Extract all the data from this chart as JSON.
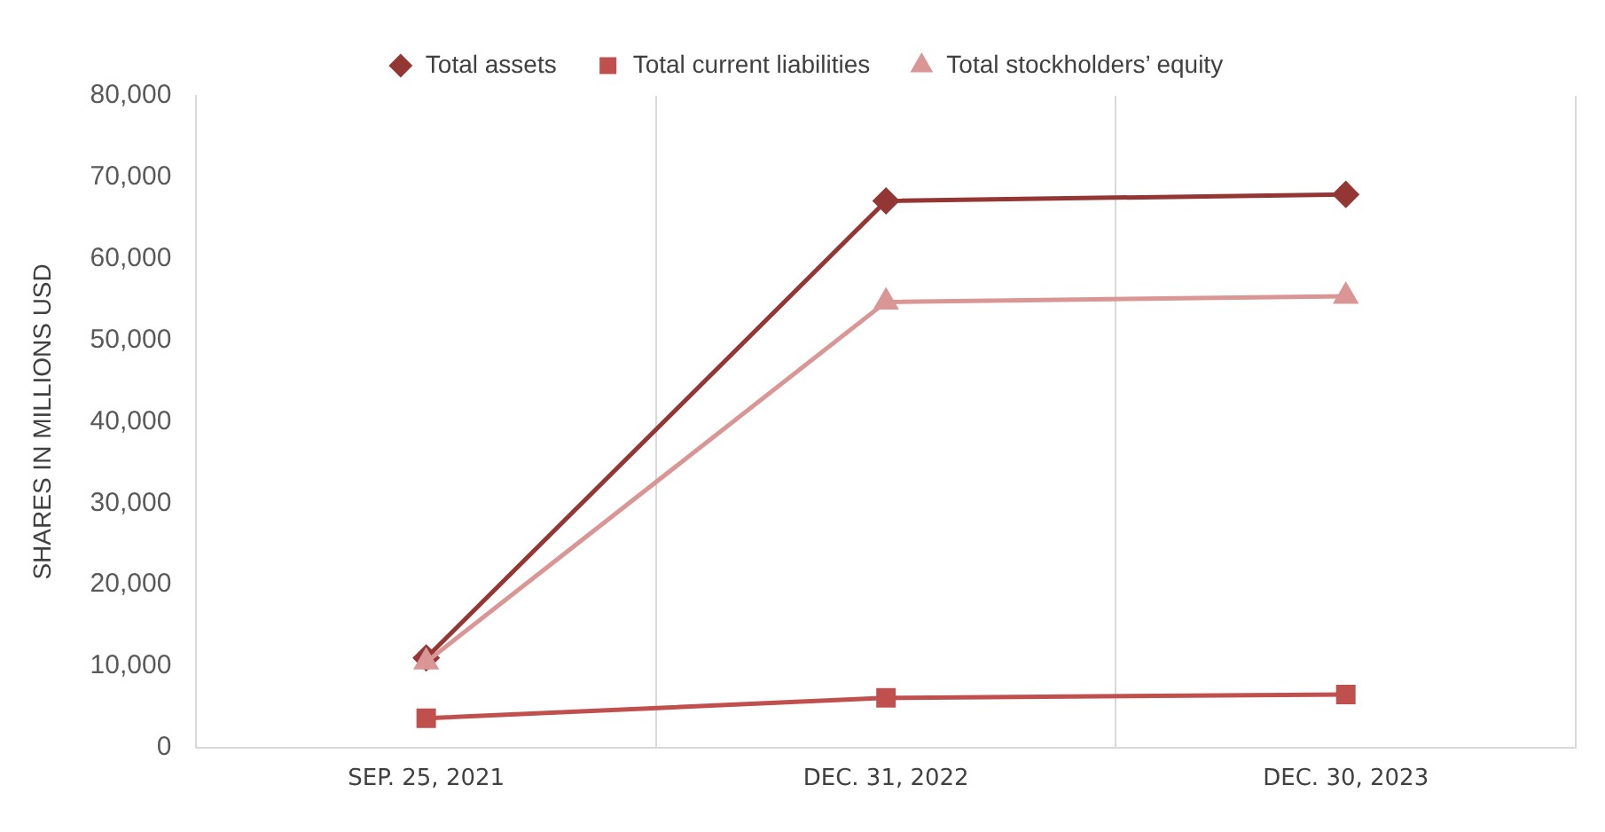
{
  "chart_data": {
    "type": "line",
    "ylabel": "SHARES IN MILLIONS USD",
    "categories": [
      "SEP. 25, 2021",
      "DEC. 31, 2022",
      "DEC. 30, 2023"
    ],
    "series": [
      {
        "name": "Total assets",
        "color": "#943634",
        "marker": "diamond",
        "values": [
          11000,
          67100,
          67900
        ]
      },
      {
        "name": "Total current liabilities",
        "color": "#c0504d",
        "marker": "square",
        "values": [
          3600,
          6100,
          6500
        ]
      },
      {
        "name": "Total stockholders’ equity",
        "color": "#d99694",
        "marker": "triangle",
        "values": [
          10500,
          54700,
          55400
        ]
      }
    ],
    "ylim": [
      0,
      80000
    ],
    "yticks": [
      0,
      {
        "value": 10000,
        "label": "10,000"
      },
      {
        "value": 20000,
        "label": "20,000"
      },
      {
        "value": 30000,
        "label": "30,000"
      },
      {
        "value": 40000,
        "label": "40,000"
      },
      {
        "value": 50000,
        "label": "50,000"
      },
      {
        "value": 60000,
        "label": "60,000"
      },
      {
        "value": 70000,
        "label": "70,000"
      },
      {
        "value": 80000,
        "label": "80,000"
      }
    ],
    "grid": "x",
    "legend": "top",
    "line_style": "solid"
  }
}
